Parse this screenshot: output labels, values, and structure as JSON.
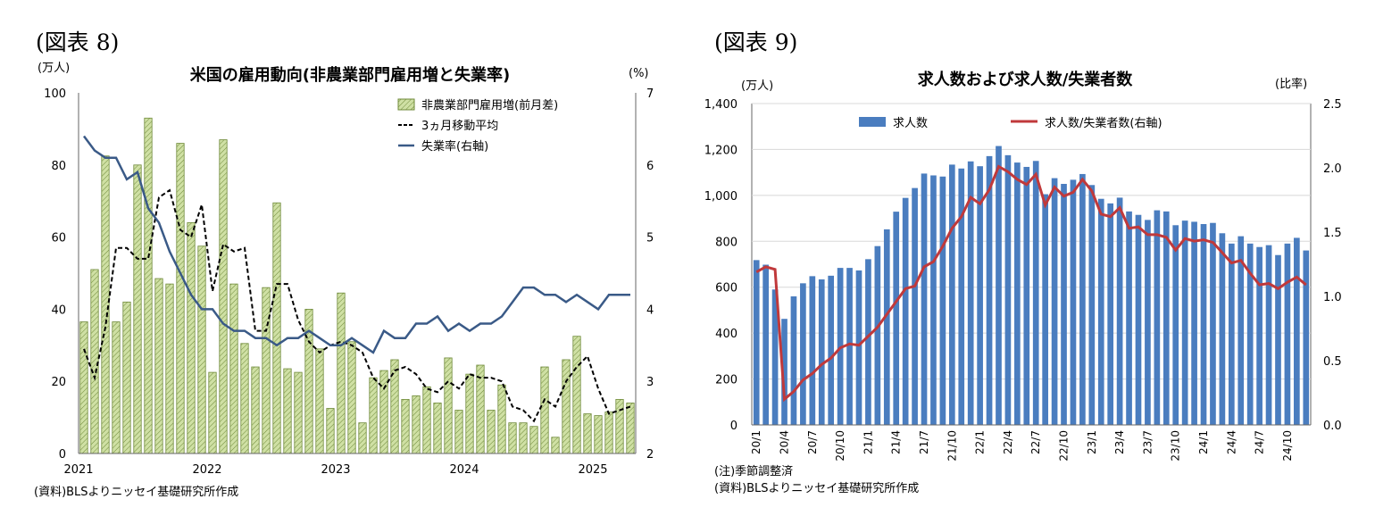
{
  "left_figure": {
    "label": "(図表 8)",
    "source": "(資料)BLSよりニッセイ基礎研究所作成"
  },
  "right_figure": {
    "label": "(図表 9)",
    "note": "(注)季節調整済",
    "source": "(資料)BLSよりニッセイ基礎研究所作成"
  },
  "colors": {
    "bar_fill": "#cfe0a4",
    "bar_stroke": "#6f8a3a",
    "unemployment_line": "#3a5a87",
    "moving_avg": "#000000",
    "openings_bar": "#4a7dbf",
    "ratio_line": "#c0393b"
  },
  "chart_data": [
    {
      "type": "bar",
      "title": "米国の雇用動向(非農業部門雇用増と失業率)",
      "left_unit": "(万人)",
      "right_unit": "(%)",
      "ylim": [
        0,
        100
      ],
      "y2lim": [
        2,
        7
      ],
      "yticks": [
        0,
        20,
        40,
        60,
        80,
        100
      ],
      "y2ticks": [
        2,
        3,
        4,
        5,
        6,
        7
      ],
      "xticks": [
        "2021",
        "2022",
        "2023",
        "2024",
        "2025"
      ],
      "legend_position": "top-right",
      "series": [
        {
          "name": "非農業部門雇用増(前月差)",
          "type": "bar",
          "values": [
            36.5,
            51,
            82.5,
            36.5,
            42,
            80,
            93,
            48.5,
            47,
            86,
            64,
            57.5,
            22.5,
            87,
            47,
            30.5,
            24,
            46,
            69.5,
            23.5,
            22.5,
            40,
            29,
            12.5,
            44.5,
            31,
            8.5,
            21,
            23,
            26,
            15,
            16,
            18.5,
            14,
            26.5,
            12,
            22,
            24.5,
            12,
            19,
            8.5,
            8.5,
            7.5,
            24,
            4.5,
            26,
            32.5,
            11,
            10.5,
            11.5,
            15,
            14
          ]
        },
        {
          "name": "3ヵ月移動平均",
          "type": "line",
          "values": [
            29,
            21,
            35,
            57,
            57,
            54,
            54,
            71,
            73,
            62,
            60,
            69,
            45,
            58,
            56,
            57,
            34,
            34,
            47,
            47,
            37,
            31,
            28,
            30,
            31,
            30,
            28,
            21,
            18,
            23,
            24,
            22,
            18,
            17,
            20,
            18,
            22,
            21,
            21,
            20,
            13,
            12,
            9,
            15,
            13,
            20,
            24,
            27,
            18,
            11,
            12,
            13
          ]
        },
        {
          "name": "失業率(右軸)",
          "type": "line",
          "axis": "right",
          "values": [
            6.4,
            6.2,
            6.1,
            6.1,
            5.8,
            5.9,
            5.4,
            5.2,
            4.8,
            4.5,
            4.2,
            4.0,
            4.0,
            3.8,
            3.7,
            3.7,
            3.6,
            3.6,
            3.5,
            3.6,
            3.6,
            3.7,
            3.6,
            3.5,
            3.5,
            3.6,
            3.5,
            3.4,
            3.7,
            3.6,
            3.6,
            3.8,
            3.8,
            3.9,
            3.7,
            3.8,
            3.7,
            3.8,
            3.8,
            3.9,
            4.1,
            4.3,
            4.3,
            4.2,
            4.2,
            4.1,
            4.2,
            4.1,
            4.0,
            4.2,
            4.2,
            4.2
          ]
        }
      ]
    },
    {
      "type": "bar",
      "title": "求人数および求人数/失業者数",
      "left_unit": "(万人)",
      "right_unit": "(比率)",
      "ylim": [
        0,
        1400
      ],
      "y2lim": [
        0,
        2.5
      ],
      "yticks": [
        "0",
        "200",
        "400",
        "600",
        "800",
        "1,000",
        "1,200",
        "1,400"
      ],
      "y2ticks": [
        "0.0",
        "0.5",
        "1.0",
        "1.5",
        "2.0",
        "2.5"
      ],
      "xticks": [
        "20/1",
        "20/4",
        "20/7",
        "20/10",
        "21/1",
        "21/4",
        "21/7",
        "21/10",
        "22/1",
        "22/4",
        "22/7",
        "22/10",
        "23/1",
        "23/4",
        "23/7",
        "23/10",
        "24/1",
        "24/4",
        "24/7",
        "24/10"
      ],
      "legend_position": "top",
      "series": [
        {
          "name": "求人数",
          "type": "bar",
          "values": [
            718,
            698,
            590,
            462,
            560,
            617,
            648,
            634,
            650,
            684,
            684,
            673,
            722,
            779,
            852,
            929,
            989,
            1032,
            1095,
            1087,
            1082,
            1134,
            1117,
            1148,
            1127,
            1171,
            1215,
            1175,
            1143,
            1124,
            1150,
            1005,
            1075,
            1050,
            1068,
            1093,
            1045,
            985,
            965,
            990,
            930,
            915,
            893,
            935,
            930,
            870,
            890,
            885,
            875,
            880,
            835,
            790,
            822,
            790,
            775,
            783,
            740,
            790,
            815,
            760
          ]
        },
        {
          "name": "求人数/失業者数(右軸)",
          "type": "line",
          "axis": "right",
          "values": [
            1.19,
            1.23,
            1.21,
            0.2,
            0.26,
            0.35,
            0.4,
            0.47,
            0.52,
            0.6,
            0.63,
            0.62,
            0.69,
            0.76,
            0.86,
            0.96,
            1.06,
            1.08,
            1.23,
            1.27,
            1.39,
            1.53,
            1.62,
            1.77,
            1.72,
            1.83,
            2.01,
            1.97,
            1.91,
            1.87,
            1.95,
            1.71,
            1.85,
            1.78,
            1.81,
            1.91,
            1.82,
            1.64,
            1.62,
            1.69,
            1.53,
            1.54,
            1.48,
            1.48,
            1.46,
            1.36,
            1.45,
            1.43,
            1.44,
            1.42,
            1.34,
            1.26,
            1.28,
            1.18,
            1.09,
            1.1,
            1.06,
            1.11,
            1.15,
            1.09
          ]
        }
      ]
    }
  ]
}
